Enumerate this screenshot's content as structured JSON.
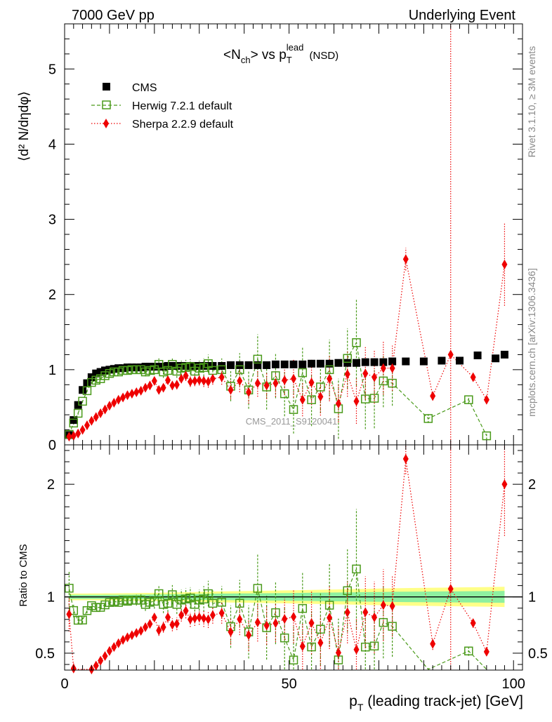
{
  "header": {
    "left": "7000 GeV pp",
    "right": "Underlying Event"
  },
  "side_labels": {
    "rivet": "Rivet 3.1.10, ≥ 3M events",
    "mcplots": "mcplots.cern.ch [arXiv:1306.3436]"
  },
  "watermark": "CMS_2011_S9120041",
  "chart_data": {
    "type": "scatter",
    "title": {
      "main": "<N",
      "sub_ch": "ch",
      "mid": "> vs p",
      "sub_T": "T",
      "sup_lead": "lead",
      "tail": " (NSD)"
    },
    "xlabel": {
      "p": "p",
      "sub": "T",
      "rest": " (leading track-jet) [GeV]"
    },
    "ylabel": "⟨d² N/dηdφ⟩",
    "ratio_ylabel": "Ratio to CMS",
    "xlim": [
      0,
      102
    ],
    "ylim": [
      0,
      5.6
    ],
    "ratio_ylim": [
      0.35,
      2.35
    ],
    "x_ticks": [
      0,
      50,
      100
    ],
    "x_tick_labels": [
      "0",
      "50",
      "100"
    ],
    "y_ticks": [
      0,
      1,
      2,
      3,
      4,
      5
    ],
    "y_tick_labels": [
      "0",
      "1",
      "2",
      "3",
      "4",
      "5"
    ],
    "ratio_ticks": [
      0.5,
      1,
      2
    ],
    "ratio_tick_labels": [
      "0.5",
      "1",
      "2"
    ],
    "legend": [
      {
        "label": "CMS",
        "marker": "square-filled",
        "color": "#000000"
      },
      {
        "label": "Herwig 7.2.1 default",
        "marker": "square-open",
        "color": "#4a9a1a"
      },
      {
        "label": "Sherpa 2.2.9 default",
        "marker": "diamond",
        "color": "#ee0000"
      }
    ],
    "x": [
      1,
      2,
      3,
      4,
      5,
      6,
      7,
      8,
      9,
      10,
      11,
      12,
      13,
      14,
      15,
      16,
      17,
      18,
      19,
      20,
      21,
      22,
      23,
      24,
      25,
      26,
      27,
      28,
      29,
      30,
      31,
      32,
      33,
      35,
      37,
      39,
      41,
      43,
      45,
      47,
      49,
      51,
      53,
      55,
      57,
      59,
      61,
      63,
      65,
      67,
      69,
      71,
      73,
      76,
      80,
      84,
      88,
      92,
      96,
      98
    ],
    "series": [
      {
        "name": "CMS",
        "values": [
          0.13,
          0.33,
          0.53,
          0.73,
          0.82,
          0.9,
          0.95,
          0.97,
          0.99,
          1.0,
          1.01,
          1.02,
          1.02,
          1.03,
          1.03,
          1.03,
          1.03,
          1.04,
          1.04,
          1.04,
          1.04,
          1.04,
          1.05,
          1.05,
          1.05,
          1.05,
          1.05,
          1.05,
          1.05,
          1.05,
          1.05,
          1.05,
          1.05,
          1.05,
          1.06,
          1.06,
          1.06,
          1.06,
          1.06,
          1.07,
          1.07,
          1.07,
          1.07,
          1.08,
          1.08,
          1.08,
          1.09,
          1.09,
          1.09,
          1.1,
          1.1,
          1.1,
          1.11,
          1.11,
          1.11,
          1.12,
          1.12,
          1.19,
          1.15,
          1.2
        ]
      },
      {
        "name": "Herwig 7.2.1 default",
        "x": [
          1,
          2,
          3,
          4,
          5,
          6,
          7,
          8,
          9,
          10,
          11,
          12,
          13,
          14,
          15,
          16,
          17,
          18,
          19,
          20,
          21,
          22,
          23,
          24,
          25,
          26,
          27,
          28,
          29,
          30,
          31,
          32,
          33,
          35,
          37,
          39,
          41,
          43,
          45,
          47,
          49,
          51,
          53,
          55,
          57,
          59,
          61,
          63,
          65,
          67,
          69,
          71,
          73,
          81,
          90,
          94
        ],
        "values": [
          0.14,
          0.29,
          0.42,
          0.58,
          0.72,
          0.83,
          0.86,
          0.88,
          0.92,
          0.95,
          0.97,
          0.97,
          0.99,
          0.99,
          1.0,
          1.0,
          1.0,
          0.97,
          0.99,
          1.0,
          1.07,
          0.97,
          0.99,
          1.07,
          0.98,
          1.02,
          1.03,
          1.04,
          0.98,
          1.02,
          1.03,
          1.08,
          0.99,
          1.0,
          0.78,
          1.0,
          0.73,
          1.14,
          0.77,
          0.92,
          0.68,
          0.47,
          0.96,
          0.6,
          0.77,
          1.0,
          0.48,
          1.15,
          1.36,
          0.61,
          0.62,
          0.85,
          0.82,
          0.35,
          0.6,
          0.12
        ],
        "errors": [
          0.02,
          0.02,
          0.02,
          0.02,
          0.02,
          0.02,
          0.02,
          0.02,
          0.02,
          0.02,
          0.03,
          0.03,
          0.03,
          0.03,
          0.04,
          0.05,
          0.06,
          0.06,
          0.06,
          0.07,
          0.08,
          0.08,
          0.08,
          0.09,
          0.09,
          0.1,
          0.1,
          0.1,
          0.1,
          0.1,
          0.12,
          0.12,
          0.12,
          0.15,
          0.2,
          0.22,
          0.25,
          0.33,
          0.3,
          0.3,
          0.3,
          0.32,
          0.35,
          0.35,
          0.35,
          0.4,
          0.4,
          0.4,
          0.58,
          0.4,
          0.4,
          0.35,
          0.3,
          0.06,
          0.05,
          0.05
        ]
      },
      {
        "name": "Sherpa 2.2.9 default",
        "x": [
          1,
          2,
          3,
          4,
          5,
          6,
          7,
          8,
          9,
          10,
          11,
          12,
          13,
          14,
          15,
          16,
          17,
          18,
          19,
          20,
          21,
          22,
          23,
          24,
          25,
          26,
          27,
          28,
          29,
          30,
          31,
          32,
          33,
          35,
          37,
          39,
          41,
          43,
          45,
          47,
          49,
          51,
          53,
          55,
          57,
          59,
          61,
          63,
          65,
          67,
          69,
          71,
          73,
          76,
          82,
          86,
          91,
          94,
          98
        ],
        "values": [
          0.11,
          0.12,
          0.15,
          0.2,
          0.26,
          0.32,
          0.37,
          0.42,
          0.47,
          0.52,
          0.56,
          0.6,
          0.63,
          0.66,
          0.68,
          0.7,
          0.72,
          0.76,
          0.79,
          0.85,
          0.73,
          0.76,
          0.86,
          0.79,
          0.8,
          0.88,
          0.92,
          0.84,
          0.85,
          0.86,
          0.85,
          0.84,
          0.88,
          0.9,
          0.73,
          0.85,
          0.7,
          0.82,
          0.79,
          0.82,
          0.86,
          0.88,
          0.6,
          0.83,
          0.64,
          0.88,
          0.55,
          0.94,
          0.58,
          0.95,
          0.9,
          1.02,
          1.02,
          2.47,
          0.65,
          1.2,
          0.9,
          0.6,
          2.4
        ],
        "errors": [
          0.02,
          0.02,
          0.02,
          0.02,
          0.02,
          0.02,
          0.02,
          0.02,
          0.02,
          0.02,
          0.02,
          0.02,
          0.02,
          0.02,
          0.02,
          0.02,
          0.02,
          0.03,
          0.03,
          0.03,
          0.05,
          0.05,
          0.05,
          0.06,
          0.06,
          0.06,
          0.07,
          0.07,
          0.07,
          0.07,
          0.08,
          0.08,
          0.08,
          0.1,
          0.12,
          0.15,
          0.15,
          0.18,
          0.18,
          0.18,
          0.2,
          0.25,
          0.22,
          0.3,
          0.25,
          0.3,
          0.25,
          0.3,
          0.3,
          0.35,
          0.35,
          0.35,
          0.3,
          0.15,
          0.06,
          10,
          0.05,
          0.04,
          0.55
        ]
      }
    ]
  }
}
